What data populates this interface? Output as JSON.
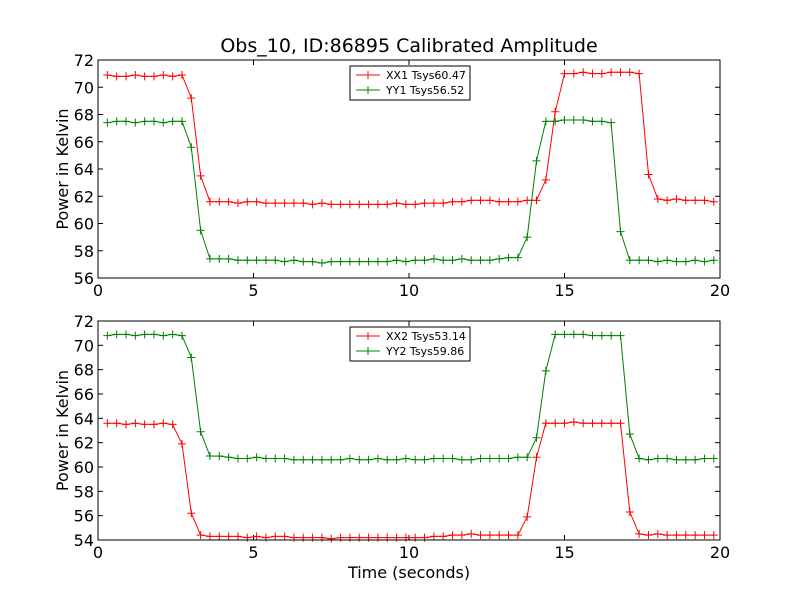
{
  "chart_data": [
    {
      "type": "line",
      "title": "Obs_10, ID:86895 Calibrated Amplitude",
      "xlabel": "",
      "ylabel": "Power in Kelvin",
      "xlim": [
        0,
        20
      ],
      "ylim": [
        56,
        72
      ],
      "xticks": [
        0,
        5,
        10,
        15,
        20
      ],
      "yticks": [
        56,
        58,
        60,
        62,
        64,
        66,
        68,
        70,
        72
      ],
      "grid": false,
      "legend_position": "top-center",
      "x": [
        0.3,
        0.6,
        0.9,
        1.2,
        1.5,
        1.8,
        2.1,
        2.4,
        2.7,
        3.0,
        3.3,
        3.6,
        3.9,
        4.2,
        4.5,
        4.8,
        5.1,
        5.4,
        5.7,
        6.0,
        6.3,
        6.6,
        6.9,
        7.2,
        7.5,
        7.8,
        8.1,
        8.4,
        8.7,
        9.0,
        9.3,
        9.6,
        9.9,
        10.2,
        10.5,
        10.8,
        11.1,
        11.4,
        11.7,
        12.0,
        12.3,
        12.6,
        12.9,
        13.2,
        13.5,
        13.8,
        14.1,
        14.4,
        14.7,
        15.0,
        15.3,
        15.6,
        15.9,
        16.2,
        16.5,
        16.8,
        17.1,
        17.4,
        17.7,
        18.0,
        18.3,
        18.6,
        18.9,
        19.2,
        19.5,
        19.8
      ],
      "series": [
        {
          "name": "XX1 Tsys60.47",
          "color": "#ff0000",
          "values": [
            70.9,
            70.8,
            70.8,
            70.9,
            70.8,
            70.8,
            70.9,
            70.8,
            70.9,
            69.2,
            63.5,
            61.6,
            61.6,
            61.6,
            61.5,
            61.6,
            61.6,
            61.5,
            61.5,
            61.5,
            61.5,
            61.5,
            61.4,
            61.5,
            61.4,
            61.4,
            61.4,
            61.4,
            61.4,
            61.4,
            61.4,
            61.5,
            61.4,
            61.4,
            61.5,
            61.5,
            61.5,
            61.6,
            61.6,
            61.7,
            61.7,
            61.7,
            61.6,
            61.6,
            61.6,
            61.7,
            61.7,
            63.2,
            68.2,
            71.0,
            71.0,
            71.1,
            71.0,
            71.0,
            71.1,
            71.1,
            71.1,
            71.0,
            63.6,
            61.8,
            61.7,
            61.8,
            61.7,
            61.7,
            61.7,
            61.6
          ]
        },
        {
          "name": "YY1 Tsys56.52",
          "color": "#008000",
          "values": [
            67.4,
            67.5,
            67.5,
            67.4,
            67.5,
            67.5,
            67.4,
            67.5,
            67.5,
            65.6,
            59.5,
            57.4,
            57.4,
            57.4,
            57.3,
            57.3,
            57.3,
            57.3,
            57.3,
            57.2,
            57.3,
            57.2,
            57.2,
            57.1,
            57.2,
            57.2,
            57.2,
            57.2,
            57.2,
            57.2,
            57.2,
            57.3,
            57.2,
            57.3,
            57.3,
            57.4,
            57.3,
            57.3,
            57.4,
            57.3,
            57.3,
            57.3,
            57.4,
            57.5,
            57.5,
            59.0,
            64.6,
            67.5,
            67.5,
            67.6,
            67.6,
            67.6,
            67.5,
            67.5,
            67.4,
            59.4,
            57.3,
            57.3,
            57.3,
            57.2,
            57.3,
            57.2,
            57.2,
            57.3,
            57.2,
            57.3
          ]
        }
      ]
    },
    {
      "type": "line",
      "title": "",
      "xlabel": "Time (seconds)",
      "ylabel": "Power in Kelvin",
      "xlim": [
        0,
        20
      ],
      "ylim": [
        54,
        72
      ],
      "xticks": [
        0,
        5,
        10,
        15,
        20
      ],
      "yticks": [
        54,
        56,
        58,
        60,
        62,
        64,
        66,
        68,
        70,
        72
      ],
      "grid": false,
      "legend_position": "top-center",
      "x": [
        0.3,
        0.6,
        0.9,
        1.2,
        1.5,
        1.8,
        2.1,
        2.4,
        2.7,
        3.0,
        3.3,
        3.6,
        3.9,
        4.2,
        4.5,
        4.8,
        5.1,
        5.4,
        5.7,
        6.0,
        6.3,
        6.6,
        6.9,
        7.2,
        7.5,
        7.8,
        8.1,
        8.4,
        8.7,
        9.0,
        9.3,
        9.6,
        9.9,
        10.2,
        10.5,
        10.8,
        11.1,
        11.4,
        11.7,
        12.0,
        12.3,
        12.6,
        12.9,
        13.2,
        13.5,
        13.8,
        14.1,
        14.4,
        14.7,
        15.0,
        15.3,
        15.6,
        15.9,
        16.2,
        16.5,
        16.8,
        17.1,
        17.4,
        17.7,
        18.0,
        18.3,
        18.6,
        18.9,
        19.2,
        19.5,
        19.8
      ],
      "series": [
        {
          "name": "XX2 Tsys53.14",
          "color": "#ff0000",
          "values": [
            63.6,
            63.6,
            63.5,
            63.6,
            63.5,
            63.5,
            63.6,
            63.5,
            61.9,
            56.2,
            54.4,
            54.3,
            54.3,
            54.3,
            54.3,
            54.2,
            54.3,
            54.2,
            54.3,
            54.3,
            54.2,
            54.2,
            54.2,
            54.2,
            54.1,
            54.2,
            54.2,
            54.2,
            54.2,
            54.2,
            54.2,
            54.2,
            54.2,
            54.2,
            54.2,
            54.3,
            54.3,
            54.4,
            54.4,
            54.5,
            54.4,
            54.4,
            54.4,
            54.4,
            54.4,
            55.9,
            60.8,
            63.6,
            63.6,
            63.6,
            63.7,
            63.6,
            63.6,
            63.6,
            63.6,
            63.6,
            56.3,
            54.5,
            54.4,
            54.5,
            54.4,
            54.4,
            54.4,
            54.4,
            54.4,
            54.4
          ]
        },
        {
          "name": "YY2 Tsys59.86",
          "color": "#008000",
          "values": [
            70.8,
            70.9,
            70.9,
            70.8,
            70.9,
            70.9,
            70.8,
            70.9,
            70.8,
            69.0,
            62.9,
            60.9,
            60.9,
            60.8,
            60.7,
            60.7,
            60.8,
            60.7,
            60.7,
            60.7,
            60.6,
            60.6,
            60.6,
            60.6,
            60.6,
            60.6,
            60.7,
            60.6,
            60.6,
            60.7,
            60.6,
            60.6,
            60.7,
            60.6,
            60.6,
            60.7,
            60.7,
            60.7,
            60.6,
            60.6,
            60.7,
            60.7,
            60.7,
            60.7,
            60.8,
            60.8,
            62.4,
            67.9,
            70.9,
            70.9,
            70.9,
            70.9,
            70.8,
            70.8,
            70.8,
            70.8,
            62.7,
            60.7,
            60.6,
            60.7,
            60.7,
            60.6,
            60.6,
            60.6,
            60.7,
            60.7
          ]
        }
      ]
    }
  ]
}
